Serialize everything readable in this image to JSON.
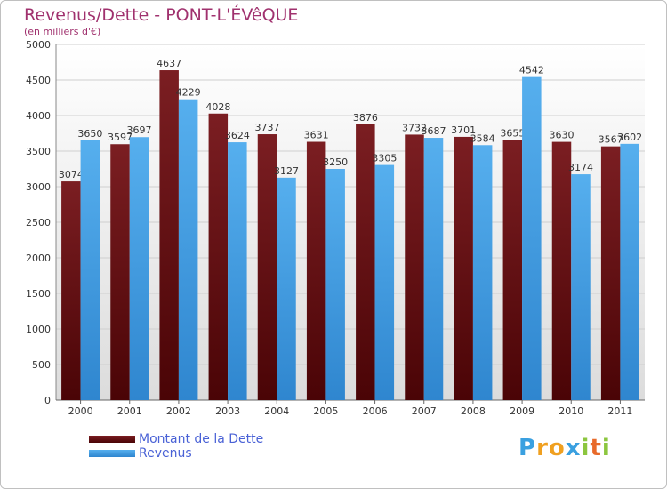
{
  "chart_data": {
    "type": "bar",
    "title": "Revenus/Dette - PONT-L'ÉVêQUE",
    "subtitle": "(en milliers d'€)",
    "categories": [
      "2000",
      "2001",
      "2002",
      "2003",
      "2004",
      "2005",
      "2006",
      "2007",
      "2008",
      "2009",
      "2010",
      "2011"
    ],
    "series": [
      {
        "name": "Montant de la Dette",
        "color": "#6e0c10",
        "values": [
          3074,
          3597,
          4637,
          4028,
          3737,
          3631,
          3876,
          3732,
          3701,
          3655,
          3630,
          3567
        ]
      },
      {
        "name": "Revenus",
        "color": "#4aa3e8",
        "values": [
          3650,
          3697,
          4229,
          3624,
          3127,
          3250,
          3305,
          3687,
          3584,
          4542,
          3174,
          3602
        ]
      }
    ],
    "ylim": [
      0,
      5000
    ],
    "yticks": [
      0,
      500,
      1000,
      1500,
      2000,
      2500,
      3000,
      3500,
      4000,
      4500,
      5000
    ],
    "grid": true,
    "legend_position": "bottom-left"
  },
  "logo": {
    "text": "Proxiti",
    "letters": [
      "P",
      "r",
      "o",
      "x",
      "i",
      "t",
      "i"
    ],
    "colors": [
      "#3aa0e0",
      "#f0a020",
      "#f0a020",
      "#3aa0e0",
      "#8cc63f",
      "#e86a2a",
      "#8cc63f"
    ]
  }
}
